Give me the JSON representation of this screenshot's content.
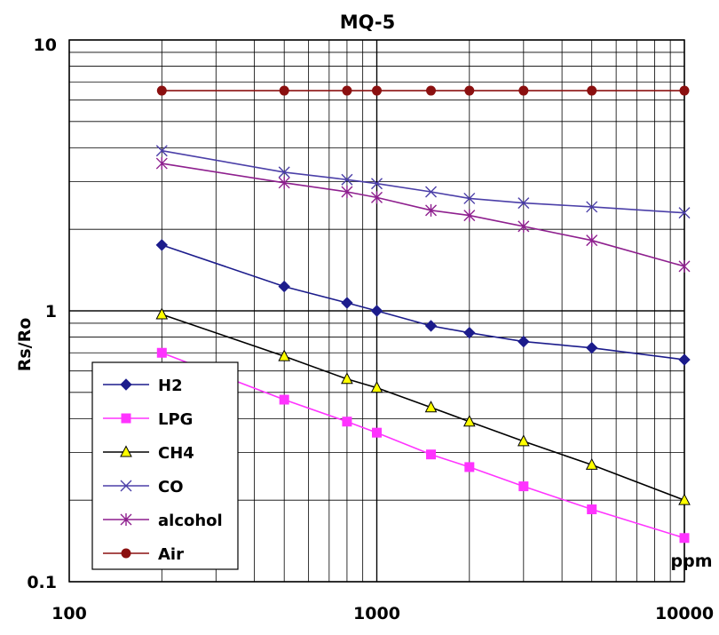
{
  "chart_data": {
    "type": "line",
    "title": "MQ-5",
    "xlabel": "ppm",
    "ylabel": "Rs/Ro",
    "xscale": "log",
    "yscale": "log",
    "xlim": [
      100,
      10000
    ],
    "ylim": [
      0.1,
      10
    ],
    "x_ticks": [
      "100",
      "1000",
      "10000"
    ],
    "y_ticks": [
      "0.1",
      "1",
      "10"
    ],
    "grid": true,
    "legend_position": "bottom-left",
    "series": [
      {
        "name": "H2",
        "color": "#1c1c8c",
        "marker": "diamond",
        "x": [
          200,
          500,
          800,
          1000,
          1500,
          2000,
          3000,
          5000,
          10000
        ],
        "y": [
          1.75,
          1.23,
          1.07,
          1.0,
          0.88,
          0.83,
          0.77,
          0.73,
          0.66
        ]
      },
      {
        "name": "LPG",
        "color": "#ff33ff",
        "marker": "square",
        "x": [
          200,
          500,
          800,
          1000,
          1500,
          2000,
          3000,
          5000,
          10000
        ],
        "y": [
          0.7,
          0.47,
          0.39,
          0.355,
          0.295,
          0.265,
          0.225,
          0.185,
          0.145
        ]
      },
      {
        "name": "CH4",
        "color": "#000000",
        "marker": "triangle",
        "fill": "#ffff00",
        "x": [
          200,
          500,
          800,
          1000,
          1500,
          2000,
          3000,
          5000,
          10000
        ],
        "y": [
          0.97,
          0.68,
          0.56,
          0.52,
          0.44,
          0.39,
          0.33,
          0.27,
          0.2
        ]
      },
      {
        "name": "CO",
        "color": "#4b3fa8",
        "marker": "x",
        "x": [
          200,
          500,
          800,
          1000,
          1500,
          2000,
          3000,
          5000,
          10000
        ],
        "y": [
          3.9,
          3.25,
          3.05,
          2.95,
          2.75,
          2.6,
          2.5,
          2.42,
          2.3
        ]
      },
      {
        "name": "alcohol",
        "color": "#8e1f8e",
        "marker": "star",
        "x": [
          200,
          500,
          800,
          1000,
          1500,
          2000,
          3000,
          5000,
          10000
        ],
        "y": [
          3.5,
          2.97,
          2.75,
          2.62,
          2.35,
          2.25,
          2.05,
          1.82,
          1.46
        ]
      },
      {
        "name": "Air",
        "color": "#8b1010",
        "marker": "circle",
        "x": [
          200,
          500,
          800,
          1000,
          1500,
          2000,
          3000,
          5000,
          10000
        ],
        "y": [
          6.5,
          6.5,
          6.5,
          6.5,
          6.5,
          6.5,
          6.5,
          6.5,
          6.5
        ]
      }
    ]
  }
}
